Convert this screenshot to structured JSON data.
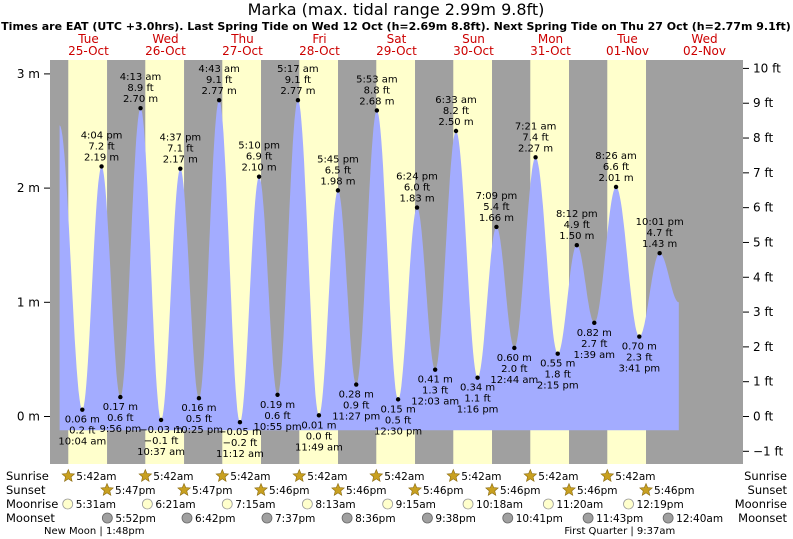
{
  "title": "Marka (max. tidal range 2.99m 9.8ft)",
  "subtitle": "Times are EAT (UTC +3.0hrs). Last Spring Tide on Wed 12 Oct (h=2.69m 8.8ft). Next Spring Tide on Thu 27 Oct (h=2.77m 9.1ft)",
  "colors": {
    "water": "#a3acff",
    "day_bg": "#ffffcc",
    "night_bg": "#a0a0a0",
    "day_text": "#cc0000",
    "sun_icon": "#c8a020",
    "moonrise_icon": "#ffffcc",
    "moonset_icon": "#a0a0a0"
  },
  "days": [
    {
      "dow": "Tue",
      "date": "25-Oct"
    },
    {
      "dow": "Wed",
      "date": "26-Oct"
    },
    {
      "dow": "Thu",
      "date": "27-Oct"
    },
    {
      "dow": "Fri",
      "date": "28-Oct"
    },
    {
      "dow": "Sat",
      "date": "29-Oct"
    },
    {
      "dow": "Sun",
      "date": "30-Oct"
    },
    {
      "dow": "Mon",
      "date": "31-Oct"
    },
    {
      "dow": "Tue",
      "date": "01-Nov"
    },
    {
      "dow": "Wed",
      "date": "02-Nov"
    }
  ],
  "chart_data": {
    "type": "area",
    "title": "Marka (max. tidal range 2.99m 9.8ft)",
    "x_unit": "hours from 00:00 Tue 25-Oct (EAT)",
    "y_unit": "m",
    "ylim_m": [
      -0.3,
      3.1
    ],
    "left_ticks": [
      {
        "v": 0,
        "label": "0 m"
      },
      {
        "v": 1,
        "label": "1 m"
      },
      {
        "v": 2,
        "label": "2 m"
      },
      {
        "v": 3,
        "label": "3 m"
      }
    ],
    "right_ticks": [
      {
        "v": -1,
        "label": "−1 ft"
      },
      {
        "v": 0,
        "label": "0 ft"
      },
      {
        "v": 1,
        "label": "1 ft"
      },
      {
        "v": 2,
        "label": "2 ft"
      },
      {
        "v": 3,
        "label": "3 ft"
      },
      {
        "v": 4,
        "label": "4 ft"
      },
      {
        "v": 5,
        "label": "5 ft"
      },
      {
        "v": 6,
        "label": "6 ft"
      },
      {
        "v": 7,
        "label": "7 ft"
      },
      {
        "v": 8,
        "label": "8 ft"
      },
      {
        "v": 9,
        "label": "9 ft"
      },
      {
        "v": 10,
        "label": "10 ft"
      }
    ],
    "series_start": {
      "t": 3.0,
      "m": 2.55
    },
    "series_end": {
      "t": 196.0,
      "m": 1.0
    },
    "extremes": [
      {
        "type": "low",
        "t": 10.07,
        "m": 0.06,
        "time": "10:04 am",
        "ft": "0.2 ft",
        "mlabel": "0.06 m"
      },
      {
        "type": "high",
        "t": 16.07,
        "m": 2.19,
        "time": "4:04 pm",
        "ft": "7.2 ft",
        "mlabel": "2.19 m"
      },
      {
        "type": "low",
        "t": 21.93,
        "m": 0.17,
        "time": "9:56 pm",
        "ft": "0.6 ft",
        "mlabel": "0.17 m"
      },
      {
        "type": "high",
        "t": 28.22,
        "m": 2.7,
        "time": "4:13 am",
        "ft": "8.9 ft",
        "mlabel": "2.70 m"
      },
      {
        "type": "low",
        "t": 34.62,
        "m": -0.03,
        "time": "10:37 am",
        "ft": "−0.1 ft",
        "mlabel": "−0.03 m"
      },
      {
        "type": "high",
        "t": 40.62,
        "m": 2.17,
        "time": "4:37 pm",
        "ft": "7.1 ft",
        "mlabel": "2.17 m"
      },
      {
        "type": "low",
        "t": 46.42,
        "m": 0.16,
        "time": "10:25 pm",
        "ft": "0.5 ft",
        "mlabel": "0.16 m"
      },
      {
        "type": "high",
        "t": 52.72,
        "m": 2.77,
        "time": "4:43 am",
        "ft": "9.1 ft",
        "mlabel": "2.77 m"
      },
      {
        "type": "low",
        "t": 59.2,
        "m": -0.05,
        "time": "11:12 am",
        "ft": "−0.2 ft",
        "mlabel": "−0.05 m"
      },
      {
        "type": "high",
        "t": 65.17,
        "m": 2.1,
        "time": "5:10 pm",
        "ft": "6.9 ft",
        "mlabel": "2.10 m"
      },
      {
        "type": "low",
        "t": 70.92,
        "m": 0.19,
        "time": "10:55 pm",
        "ft": "0.6 ft",
        "mlabel": "0.19 m"
      },
      {
        "type": "high",
        "t": 77.28,
        "m": 2.77,
        "time": "5:17 am",
        "ft": "9.1 ft",
        "mlabel": "2.77 m"
      },
      {
        "type": "low",
        "t": 83.82,
        "m": 0.01,
        "time": "11:49 am",
        "ft": "0.0 ft",
        "mlabel": "0.01 m"
      },
      {
        "type": "high",
        "t": 89.75,
        "m": 1.98,
        "time": "5:45 pm",
        "ft": "6.5 ft",
        "mlabel": "1.98 m"
      },
      {
        "type": "low",
        "t": 95.45,
        "m": 0.28,
        "time": "11:27 pm",
        "ft": "0.9 ft",
        "mlabel": "0.28 m"
      },
      {
        "type": "high",
        "t": 101.88,
        "m": 2.68,
        "time": "5:53 am",
        "ft": "8.8 ft",
        "mlabel": "2.68 m"
      },
      {
        "type": "low",
        "t": 108.5,
        "m": 0.15,
        "time": "12:30 pm",
        "ft": "0.5 ft",
        "mlabel": "0.15 m"
      },
      {
        "type": "high",
        "t": 114.4,
        "m": 1.83,
        "time": "6:24 pm",
        "ft": "6.0 ft",
        "mlabel": "1.83 m"
      },
      {
        "type": "low",
        "t": 120.05,
        "m": 0.41,
        "time": "12:03 am",
        "ft": "1.3 ft",
        "mlabel": "0.41 m"
      },
      {
        "type": "high",
        "t": 126.55,
        "m": 2.5,
        "time": "6:33 am",
        "ft": "8.2 ft",
        "mlabel": "2.50 m"
      },
      {
        "type": "low",
        "t": 133.27,
        "m": 0.34,
        "time": "1:16 pm",
        "ft": "1.1 ft",
        "mlabel": "0.34 m"
      },
      {
        "type": "high",
        "t": 139.15,
        "m": 1.66,
        "time": "7:09 pm",
        "ft": "5.4 ft",
        "mlabel": "1.66 m"
      },
      {
        "type": "low",
        "t": 144.73,
        "m": 0.6,
        "time": "12:44 am",
        "ft": "2.0 ft",
        "mlabel": "0.60 m"
      },
      {
        "type": "high",
        "t": 151.35,
        "m": 2.27,
        "time": "7:21 am",
        "ft": "7.4 ft",
        "mlabel": "2.27 m"
      },
      {
        "type": "low",
        "t": 158.25,
        "m": 0.55,
        "time": "2:15 pm",
        "ft": "1.8 ft",
        "mlabel": "0.55 m"
      },
      {
        "type": "high",
        "t": 164.2,
        "m": 1.5,
        "time": "8:12 pm",
        "ft": "4.9 ft",
        "mlabel": "1.50 m"
      },
      {
        "type": "low",
        "t": 169.65,
        "m": 0.82,
        "time": "1:39 am",
        "ft": "2.7 ft",
        "mlabel": "0.82 m"
      },
      {
        "type": "high",
        "t": 176.43,
        "m": 2.01,
        "time": "8:26 am",
        "ft": "6.6 ft",
        "mlabel": "2.01 m"
      },
      {
        "type": "low",
        "t": 183.68,
        "m": 0.7,
        "time": "3:41 pm",
        "ft": "2.3 ft",
        "mlabel": "0.70 m"
      },
      {
        "type": "high",
        "t": 190.02,
        "m": 1.43,
        "time": "10:01 pm",
        "ft": "4.7 ft",
        "mlabel": "1.43 m"
      }
    ]
  },
  "rows": {
    "sunrise_label": "Sunrise",
    "sunset_label": "Sunset",
    "moonrise_label": "Moonrise",
    "moonset_label": "Moonset",
    "sunrise": [
      {
        "t": 5.7,
        "text": "5:42am"
      },
      {
        "t": 29.7,
        "text": "5:42am"
      },
      {
        "t": 53.7,
        "text": "5:42am"
      },
      {
        "t": 77.7,
        "text": "5:42am"
      },
      {
        "t": 101.7,
        "text": "5:42am"
      },
      {
        "t": 125.7,
        "text": "5:42am"
      },
      {
        "t": 149.7,
        "text": "5:42am"
      },
      {
        "t": 173.7,
        "text": "5:42am"
      }
    ],
    "sunset": [
      {
        "t": 17.78,
        "text": "5:47pm"
      },
      {
        "t": 41.78,
        "text": "5:47pm"
      },
      {
        "t": 65.77,
        "text": "5:46pm"
      },
      {
        "t": 89.77,
        "text": "5:46pm"
      },
      {
        "t": 113.77,
        "text": "5:46pm"
      },
      {
        "t": 137.77,
        "text": "5:46pm"
      },
      {
        "t": 161.77,
        "text": "5:46pm"
      },
      {
        "t": 185.77,
        "text": "5:46pm"
      }
    ],
    "moonrise": [
      {
        "t": 5.52,
        "text": "5:31am"
      },
      {
        "t": 30.35,
        "text": "6:21am"
      },
      {
        "t": 55.25,
        "text": "7:15am"
      },
      {
        "t": 80.22,
        "text": "8:13am"
      },
      {
        "t": 105.25,
        "text": "9:15am"
      },
      {
        "t": 130.3,
        "text": "10:18am"
      },
      {
        "t": 155.33,
        "text": "11:20am"
      },
      {
        "t": 180.32,
        "text": "12:19pm"
      }
    ],
    "moonset": [
      {
        "t": 17.87,
        "text": "5:52pm"
      },
      {
        "t": 42.7,
        "text": "6:42pm"
      },
      {
        "t": 67.62,
        "text": "7:37pm"
      },
      {
        "t": 92.6,
        "text": "8:36pm"
      },
      {
        "t": 117.63,
        "text": "9:38pm"
      },
      {
        "t": 142.68,
        "text": "10:41pm"
      },
      {
        "t": 167.72,
        "text": "11:43pm"
      },
      {
        "t": 192.67,
        "text": "12:40am"
      }
    ],
    "moon_phases": [
      {
        "t": 13.8,
        "text": "New Moon | 1:48pm"
      },
      {
        "t": 177.6,
        "text": "First Quarter | 9:37am"
      }
    ]
  }
}
